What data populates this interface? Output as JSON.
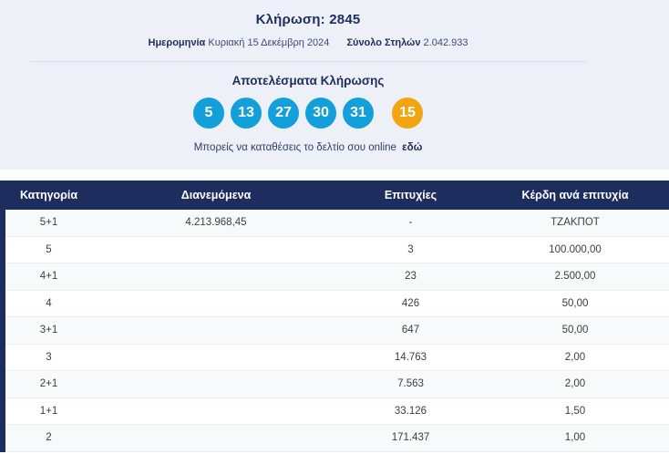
{
  "header": {
    "draw_label": "Κλήρωση:",
    "draw_number": "2845",
    "date_label": "Ημερομηνία",
    "date_value": "Κυριακή 15 Δεκέμβρη 2024",
    "columns_label": "Σύνολο Στηλών",
    "columns_value": "2.042.933"
  },
  "results": {
    "title": "Αποτελέσματα Κλήρωσης",
    "numbers": [
      "5",
      "13",
      "27",
      "30",
      "31"
    ],
    "bonus_number": "15",
    "cta_text": "Μπορείς να καταθέσεις το δελτίο σου online",
    "cta_link": "εδώ"
  },
  "table": {
    "headers": [
      "Κατηγορία",
      "Διανεμόμενα",
      "Επιτυχίες",
      "Κέρδη ανά επιτυχία"
    ],
    "rows": [
      {
        "category": "5+1",
        "distributed": "4.213.968,45",
        "wins": "-",
        "prize": "ΤΖΑΚΠΟΤ"
      },
      {
        "category": "5",
        "distributed": "",
        "wins": "3",
        "prize": "100.000,00"
      },
      {
        "category": "4+1",
        "distributed": "",
        "wins": "23",
        "prize": "2.500,00"
      },
      {
        "category": "4",
        "distributed": "",
        "wins": "426",
        "prize": "50,00"
      },
      {
        "category": "3+1",
        "distributed": "",
        "wins": "647",
        "prize": "50,00"
      },
      {
        "category": "3",
        "distributed": "",
        "wins": "14.763",
        "prize": "2,00"
      },
      {
        "category": "2+1",
        "distributed": "",
        "wins": "7.563",
        "prize": "2,00"
      },
      {
        "category": "1+1",
        "distributed": "",
        "wins": "33.126",
        "prize": "1,50"
      },
      {
        "category": "2",
        "distributed": "",
        "wins": "171.437",
        "prize": "1,00"
      }
    ]
  },
  "colors": {
    "accent_blue": "#13a0da",
    "accent_orange": "#f1a511",
    "navy": "#1d2d5e",
    "light_bg": "#edf1f7"
  }
}
